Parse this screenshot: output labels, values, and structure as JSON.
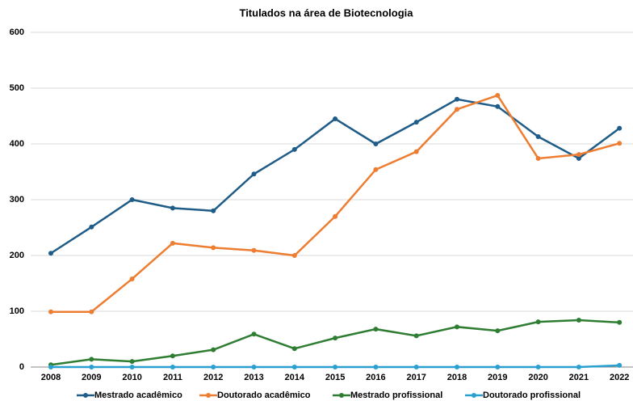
{
  "chart_data": {
    "type": "line",
    "title": "Titulados na área de Biotecnologia",
    "categories": [
      "2008",
      "2009",
      "2010",
      "2011",
      "2012",
      "2013",
      "2014",
      "2015",
      "2016",
      "2017",
      "2018",
      "2019",
      "2020",
      "2021",
      "2022"
    ],
    "series": [
      {
        "name": "Mestrado acadêmico",
        "color": "#1f5c87",
        "values": [
          204,
          251,
          300,
          285,
          280,
          346,
          390,
          445,
          400,
          439,
          480,
          467,
          413,
          374,
          428
        ]
      },
      {
        "name": "Doutorado acadêmico",
        "color": "#ed7d31",
        "values": [
          99,
          99,
          158,
          222,
          214,
          209,
          200,
          270,
          354,
          386,
          462,
          487,
          374,
          381,
          401
        ]
      },
      {
        "name": "Mestrado profissional",
        "color": "#2e7d32",
        "values": [
          4,
          14,
          10,
          20,
          31,
          59,
          33,
          52,
          68,
          56,
          72,
          65,
          81,
          84,
          80
        ]
      },
      {
        "name": "Doutorado profissional",
        "color": "#2aa0d0",
        "values": [
          0,
          0,
          0,
          0,
          0,
          0,
          0,
          0,
          0,
          0,
          0,
          0,
          0,
          0,
          3
        ]
      }
    ],
    "ylim": [
      0,
      600
    ],
    "yticks": [
      0,
      100,
      200,
      300,
      400,
      500,
      600
    ],
    "grid": true,
    "legend": "bottom"
  }
}
